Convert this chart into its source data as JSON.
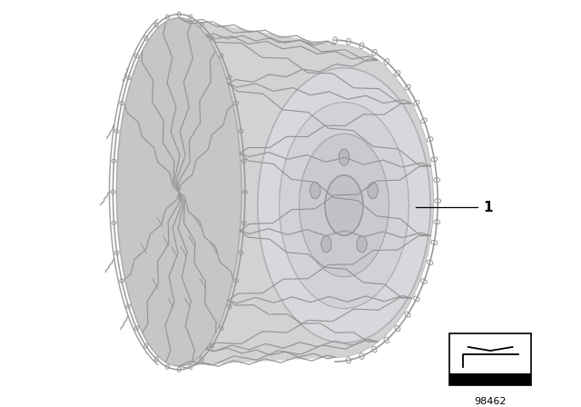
{
  "background_color": "#ffffff",
  "part_number": "98462",
  "label_number": "1",
  "tire_face_color": "#c8c8c8",
  "tire_side_color": "#d0d0d0",
  "rim_color": "#d8d8dc",
  "rim_inner_color": "#c8cace",
  "hub_color": "#c0c2c6",
  "chain_color": "#989898",
  "chain_lw": 0.9,
  "text_color": "#000000"
}
